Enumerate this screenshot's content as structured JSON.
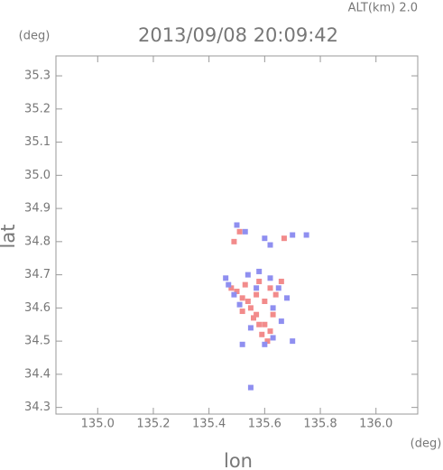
{
  "chart_data": {
    "type": "scatter",
    "title": "2013/09/08 20:09:42",
    "annotation": "ALT(km)  2.0",
    "y_unit": "(deg)",
    "x_unit": "(deg)",
    "xlabel": "lon",
    "ylabel": "lat",
    "xlim": [
      134.85,
      136.15
    ],
    "ylim": [
      34.28,
      35.36
    ],
    "xticks": [
      {
        "value": 135.0,
        "label": "135.0"
      },
      135.2,
      135.4,
      135.6,
      135.8,
      {
        "value": 136.0,
        "label": "136.0"
      }
    ],
    "yticks": [
      34.3,
      34.4,
      34.5,
      34.6,
      34.7,
      34.8,
      34.9,
      {
        "value": 35.0,
        "label": "35.0"
      },
      35.1,
      35.2,
      35.3
    ],
    "series": [
      {
        "color": "#f28b8b",
        "x": [
          135.5,
          135.52,
          135.55,
          135.57,
          135.58,
          135.6,
          135.62,
          135.53,
          135.48,
          135.59,
          135.61,
          135.56,
          135.64,
          135.66,
          135.54,
          135.51,
          135.49,
          135.63,
          135.58,
          135.6,
          135.67,
          135.52,
          135.57,
          135.62
        ],
        "values": [
          34.65,
          34.63,
          34.6,
          34.58,
          34.55,
          34.62,
          34.66,
          34.67,
          34.66,
          34.52,
          34.5,
          34.57,
          34.64,
          34.68,
          34.62,
          34.83,
          34.8,
          34.58,
          34.68,
          34.55,
          34.81,
          34.59,
          34.64,
          34.53
        ]
      },
      {
        "color": "#8f8ff0",
        "x": [
          135.47,
          135.49,
          135.54,
          135.58,
          135.62,
          135.65,
          135.68,
          135.63,
          135.55,
          135.6,
          135.63,
          135.66,
          135.5,
          135.53,
          135.6,
          135.62,
          135.7,
          135.75,
          135.51,
          135.57,
          135.52,
          135.55,
          135.7,
          135.46
        ],
        "values": [
          34.67,
          34.64,
          34.7,
          34.71,
          34.69,
          34.66,
          34.63,
          34.6,
          34.54,
          34.49,
          34.51,
          34.56,
          34.85,
          34.83,
          34.81,
          34.79,
          34.82,
          34.82,
          34.61,
          34.66,
          34.49,
          34.36,
          34.5,
          34.69
        ]
      }
    ]
  }
}
